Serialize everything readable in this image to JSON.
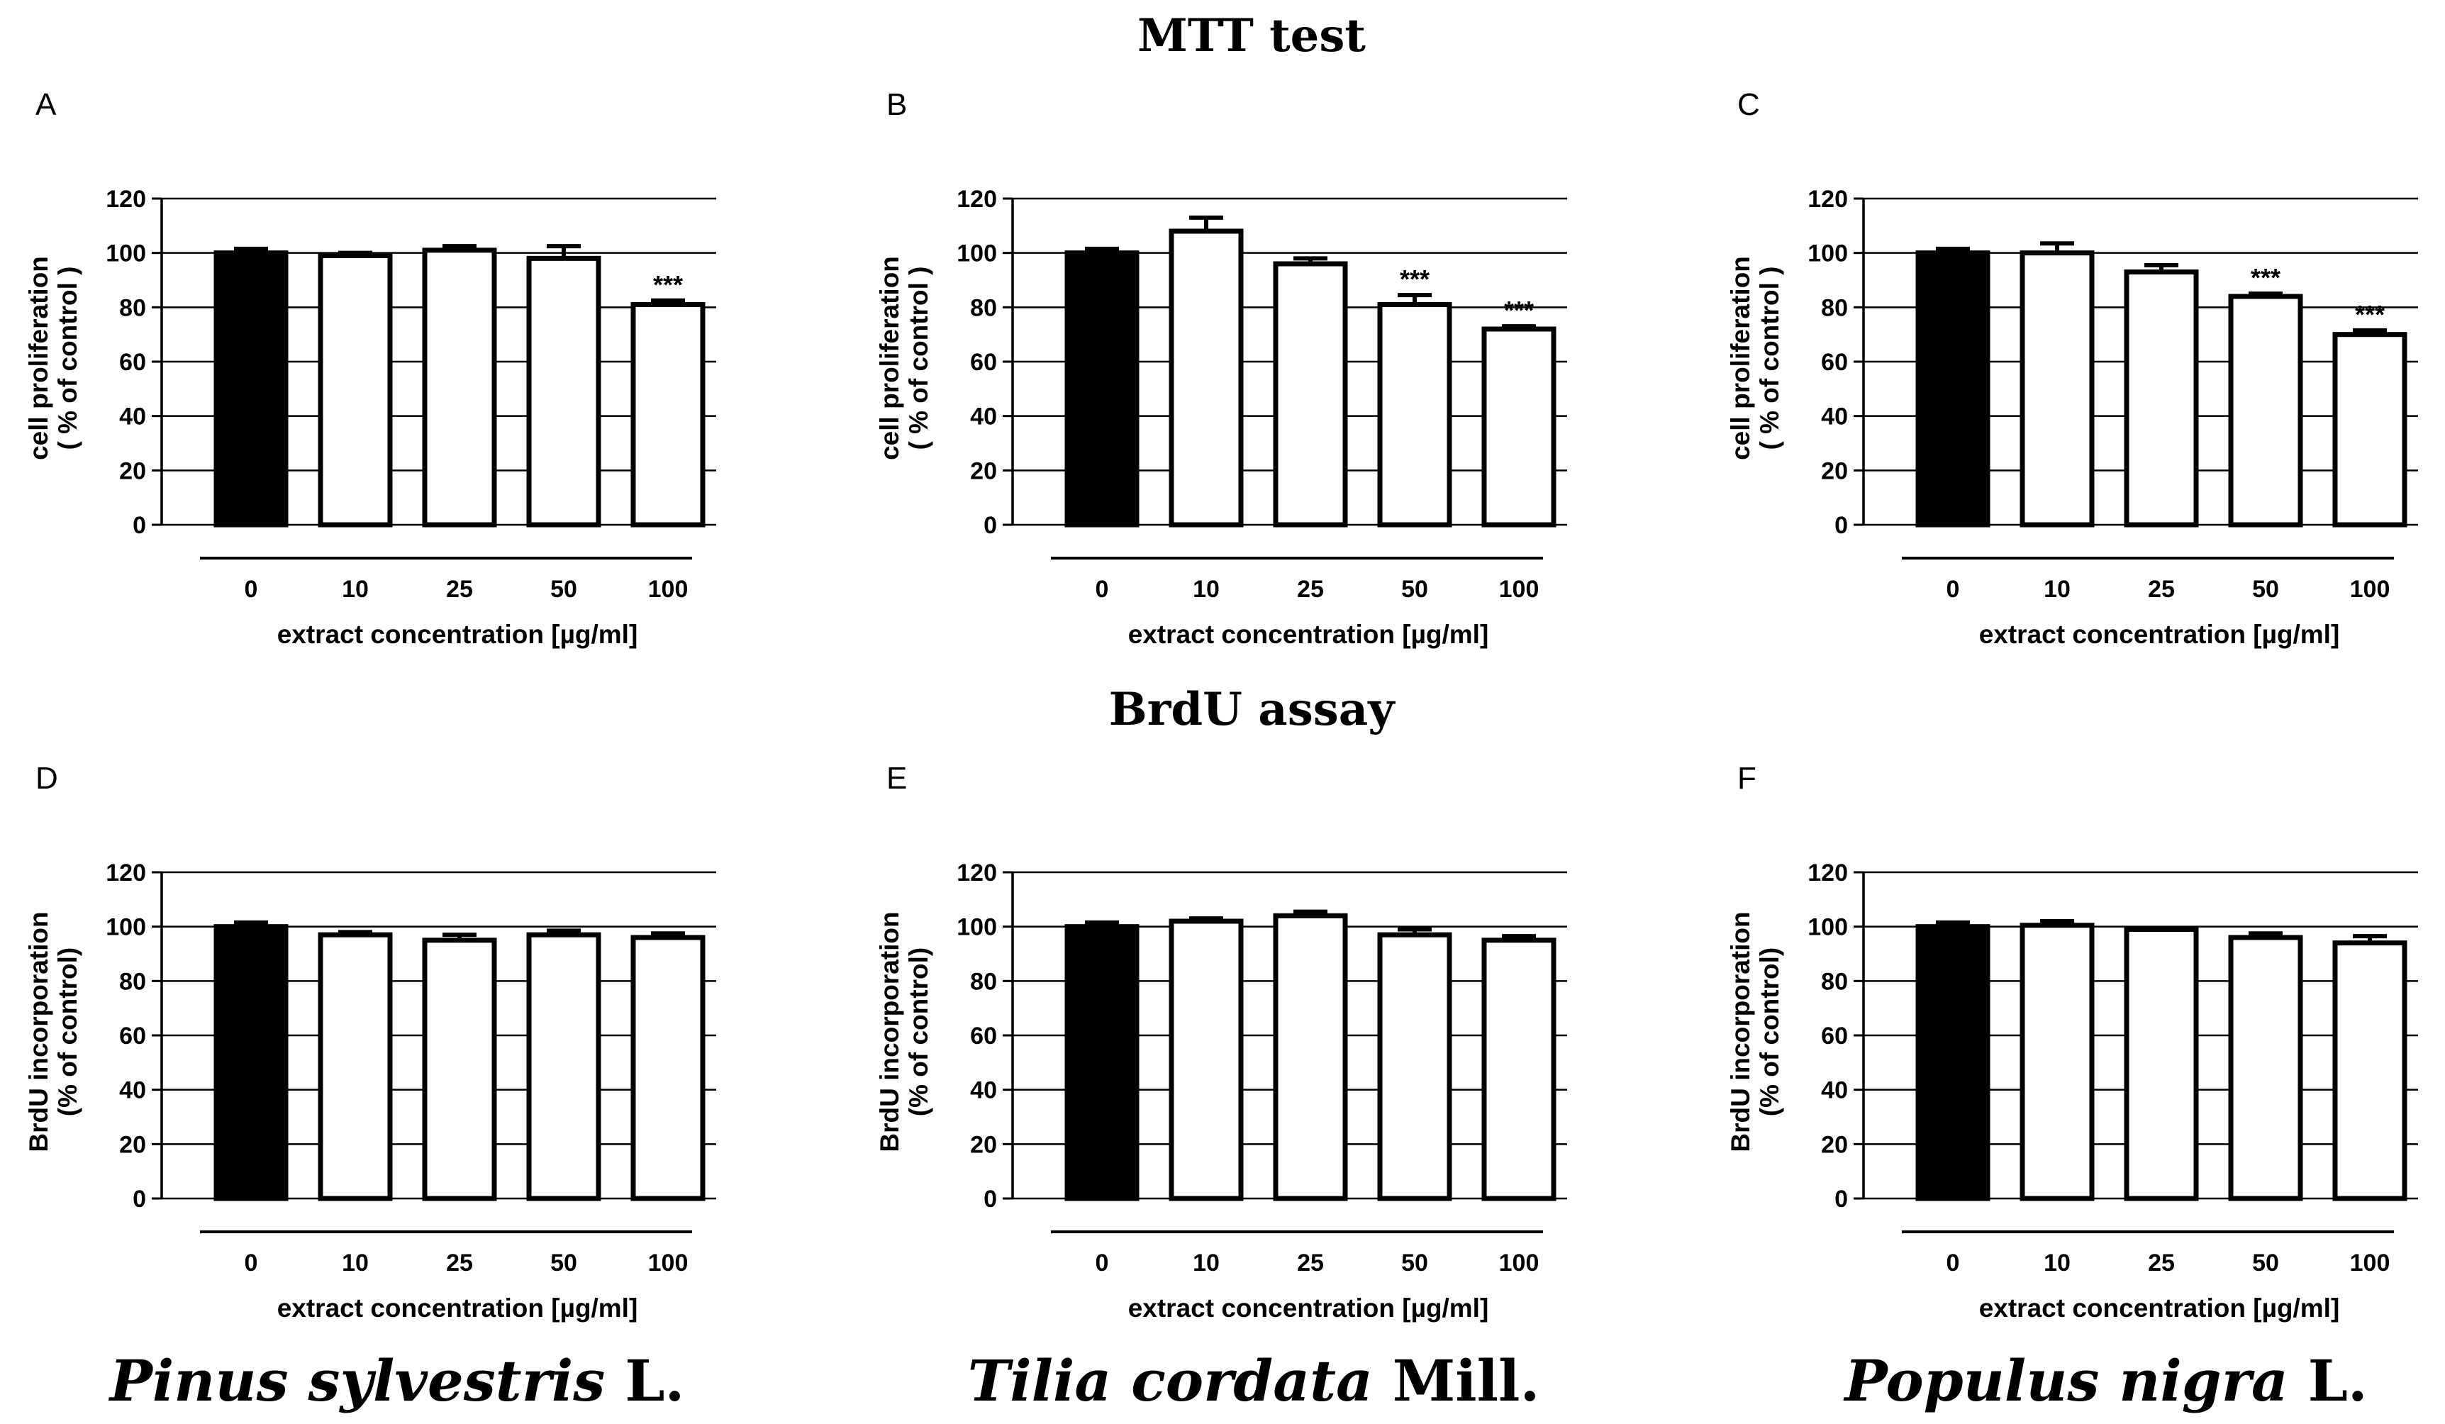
{
  "figure": {
    "top_title": "MTT test",
    "middle_title": "BrdU assay",
    "species": [
      {
        "italic": "Pinus sylvestris",
        "authority": " L."
      },
      {
        "italic": "Tilia cordata",
        "authority": " Mill."
      },
      {
        "italic": "Populus nigra",
        "authority": " L."
      }
    ]
  },
  "colors": {
    "control_bar": "#000000",
    "treated_bar": "#ffffff",
    "stroke": "#000000"
  },
  "chart_data": [
    {
      "panel": "A",
      "type": "bar",
      "xlabel": "extract concentration [µg/ml]",
      "ylabel_lines": [
        "cell proliferation",
        "( % of control )"
      ],
      "ylim": [
        0,
        120
      ],
      "yticks": [
        0,
        20,
        40,
        60,
        80,
        100,
        120
      ],
      "grid": "horizontal",
      "categories": [
        "0",
        "10",
        "25",
        "50",
        "100"
      ],
      "values": [
        100,
        99,
        101,
        98,
        81
      ],
      "errors": [
        1.5,
        1.0,
        1.5,
        4.5,
        1.5
      ],
      "annotations": [
        "",
        "",
        "",
        "",
        "***"
      ]
    },
    {
      "panel": "B",
      "type": "bar",
      "xlabel": "extract concentration [µg/ml]",
      "ylabel_lines": [
        "cell proliferation",
        "( % of control )"
      ],
      "ylim": [
        0,
        120
      ],
      "yticks": [
        0,
        20,
        40,
        60,
        80,
        100,
        120
      ],
      "grid": "horizontal",
      "categories": [
        "0",
        "10",
        "25",
        "50",
        "100"
      ],
      "values": [
        100,
        108,
        96,
        81,
        72
      ],
      "errors": [
        1.5,
        5.0,
        2.0,
        3.5,
        1.0
      ],
      "annotations": [
        "",
        "",
        "",
        "***",
        "***"
      ]
    },
    {
      "panel": "C",
      "type": "bar",
      "xlabel": "extract concentration [µg/ml]",
      "ylabel_lines": [
        "cell proliferation",
        "( % of control )"
      ],
      "ylim": [
        0,
        120
      ],
      "yticks": [
        0,
        20,
        40,
        60,
        80,
        100,
        120
      ],
      "grid": "horizontal",
      "categories": [
        "0",
        "10",
        "25",
        "50",
        "100"
      ],
      "values": [
        100,
        100,
        93,
        84,
        70
      ],
      "errors": [
        1.5,
        3.5,
        2.5,
        1.0,
        1.5
      ],
      "annotations": [
        "",
        "",
        "",
        "***",
        "***"
      ]
    },
    {
      "panel": "D",
      "type": "bar",
      "xlabel": "extract concentration [µg/ml]",
      "ylabel_lines": [
        "BrdU incorporation",
        "(% of control)"
      ],
      "ylim": [
        0,
        120
      ],
      "yticks": [
        0,
        20,
        40,
        60,
        80,
        100,
        120
      ],
      "grid": "horizontal",
      "categories": [
        "0",
        "10",
        "25",
        "50",
        "100"
      ],
      "values": [
        100,
        97,
        95,
        97,
        96
      ],
      "errors": [
        1.5,
        1.0,
        2.0,
        1.5,
        1.5
      ],
      "annotations": [
        "",
        "",
        "",
        "",
        ""
      ]
    },
    {
      "panel": "E",
      "type": "bar",
      "xlabel": "extract concentration [µg/ml]",
      "ylabel_lines": [
        "BrdU incorporation",
        "(% of control)"
      ],
      "ylim": [
        0,
        120
      ],
      "yticks": [
        0,
        20,
        40,
        60,
        80,
        100,
        120
      ],
      "grid": "horizontal",
      "categories": [
        "0",
        "10",
        "25",
        "50",
        "100"
      ],
      "values": [
        100,
        102,
        104,
        97,
        95
      ],
      "errors": [
        1.5,
        1.0,
        1.5,
        2.0,
        1.5
      ],
      "annotations": [
        "",
        "",
        "",
        "",
        ""
      ]
    },
    {
      "panel": "F",
      "type": "bar",
      "xlabel": "extract concentration [µg/ml]",
      "ylabel_lines": [
        "BrdU incorporation",
        "(% of control)"
      ],
      "ylim": [
        0,
        120
      ],
      "yticks": [
        0,
        20,
        40,
        60,
        80,
        100,
        120
      ],
      "grid": "horizontal",
      "categories": [
        "0",
        "10",
        "25",
        "50",
        "100"
      ],
      "values": [
        100,
        100.5,
        99,
        96,
        94
      ],
      "errors": [
        1.5,
        1.5,
        0.5,
        1.5,
        2.5
      ],
      "annotations": [
        "",
        "",
        "",
        "",
        ""
      ]
    }
  ]
}
